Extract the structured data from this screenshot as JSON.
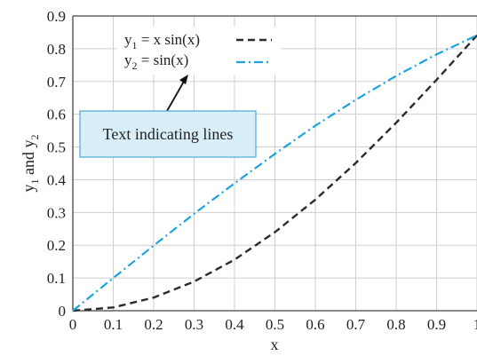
{
  "chart_data": {
    "type": "line",
    "xlabel": "x",
    "ylabel": {
      "text": "y",
      "sub1": "1",
      "mid": " and y",
      "sub2": "2"
    },
    "xlim": [
      0,
      1
    ],
    "ylim": [
      0,
      0.9
    ],
    "x_ticks": [
      0,
      0.1,
      0.2,
      0.3,
      0.4,
      0.5,
      0.6,
      0.7,
      0.8,
      0.9,
      1
    ],
    "x_tick_labels": [
      "0",
      "0.1",
      "0.2",
      "0.3",
      "0.4",
      "0.5",
      "0.6",
      "0.7",
      "0.8",
      "0.9",
      "1"
    ],
    "y_ticks": [
      0,
      0.1,
      0.2,
      0.3,
      0.4,
      0.5,
      0.6,
      0.7,
      0.8,
      0.9
    ],
    "y_tick_labels": [
      "0",
      "0.1",
      "0.2",
      "0.3",
      "0.4",
      "0.5",
      "0.6",
      "0.7",
      "0.8",
      "0.9"
    ],
    "grid": true,
    "legend_position": "top-center",
    "series": [
      {
        "legend": {
          "main": "y",
          "sub": "1",
          "rest": " = x sin(x)"
        },
        "style": "dashed",
        "color": "#2b2b2b",
        "x": [
          0,
          0.1,
          0.2,
          0.3,
          0.4,
          0.5,
          0.6,
          0.7,
          0.8,
          0.9,
          1.0
        ],
        "y": [
          0,
          0.01,
          0.04,
          0.089,
          0.156,
          0.24,
          0.339,
          0.451,
          0.574,
          0.705,
          0.841
        ]
      },
      {
        "legend": {
          "main": "y",
          "sub": "2",
          "rest": " = sin(x)"
        },
        "style": "dashdot",
        "color": "#1aa3dc",
        "x": [
          0,
          0.1,
          0.2,
          0.3,
          0.4,
          0.5,
          0.6,
          0.7,
          0.8,
          0.9,
          1.0
        ],
        "y": [
          0,
          0.1,
          0.199,
          0.296,
          0.389,
          0.479,
          0.565,
          0.644,
          0.717,
          0.783,
          0.841
        ]
      }
    ],
    "annotation": {
      "text": "Text indicating lines",
      "box_fill": "#d8eef8",
      "box_stroke": "#4aa9d6"
    }
  }
}
